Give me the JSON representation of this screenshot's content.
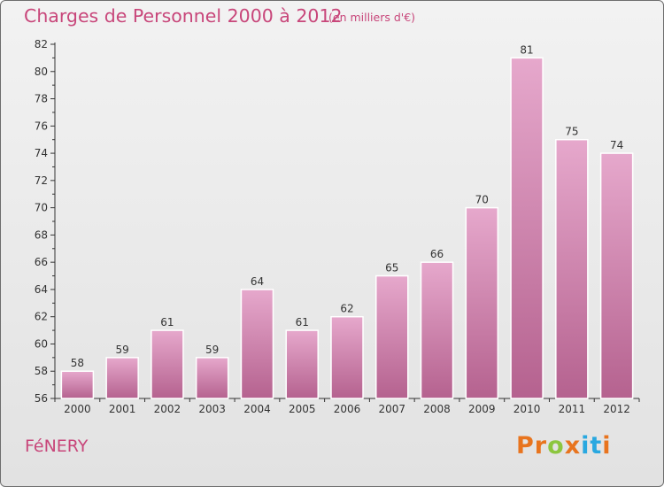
{
  "header": {
    "title": "Charges de Personnel 2000 à 2012",
    "subtitle": "(en milliers d'€)"
  },
  "footer": {
    "commune": "FéNERY",
    "brand": {
      "letters": [
        "P",
        "r",
        "o",
        "x",
        "i",
        "t",
        "i"
      ]
    }
  },
  "colors": {
    "title": "#c8467a",
    "bar_top": "#e6a8cc",
    "bar_bottom": "#b5628f",
    "brand_letters": [
      "#e8741e",
      "#e8741e",
      "#8cc63f",
      "#e8741e",
      "#29a8e0",
      "#29a8e0",
      "#e8741e"
    ]
  },
  "chart_data": {
    "type": "bar",
    "categories": [
      "2000",
      "2001",
      "2002",
      "2003",
      "2004",
      "2005",
      "2006",
      "2007",
      "2008",
      "2009",
      "2010",
      "2011",
      "2012"
    ],
    "values": [
      58,
      59,
      61,
      59,
      64,
      61,
      62,
      65,
      66,
      70,
      81,
      75,
      74
    ],
    "data_labels": [
      "58",
      "59",
      "61",
      "59",
      "64",
      "61",
      "62",
      "65",
      "66",
      "70",
      "81",
      "75",
      "74"
    ],
    "y_ticks": [
      "56",
      "58",
      "60",
      "62",
      "64",
      "66",
      "68",
      "70",
      "72",
      "74",
      "76",
      "78",
      "80",
      "82"
    ],
    "title": "Charges de Personnel 2000 à 2012",
    "xlabel": "",
    "ylabel": "",
    "ylim": [
      56,
      82
    ],
    "grid": false,
    "legend": "none"
  }
}
